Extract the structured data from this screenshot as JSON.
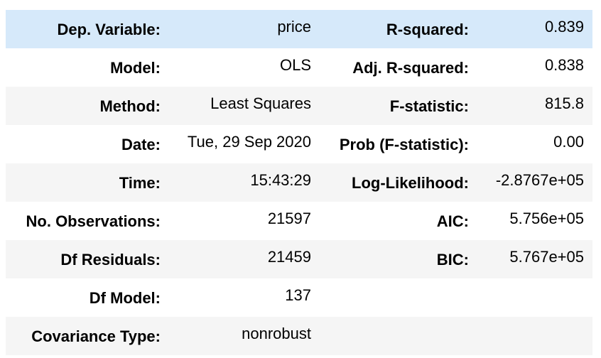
{
  "summary": {
    "rows": [
      {
        "label1": "Dep. Variable:",
        "value1": "price",
        "label2": "R-squared:",
        "value2": "0.839"
      },
      {
        "label1": "Model:",
        "value1": "OLS",
        "label2": "Adj. R-squared:",
        "value2": "0.838"
      },
      {
        "label1": "Method:",
        "value1": "Least Squares",
        "label2": "F-statistic:",
        "value2": "815.8"
      },
      {
        "label1": "Date:",
        "value1": "Tue, 29 Sep 2020",
        "label2": "Prob (F-statistic):",
        "value2": "0.00"
      },
      {
        "label1": "Time:",
        "value1": "15:43:29",
        "label2": "Log-Likelihood:",
        "value2": "-2.8767e+05"
      },
      {
        "label1": "No. Observations:",
        "value1": "21597",
        "label2": "AIC:",
        "value2": "5.756e+05"
      },
      {
        "label1": "Df Residuals:",
        "value1": "21459",
        "label2": "BIC:",
        "value2": "5.767e+05"
      },
      {
        "label1": "Df Model:",
        "value1": "137",
        "label2": "",
        "value2": ""
      },
      {
        "label1": "Covariance Type:",
        "value1": "nonrobust",
        "label2": "",
        "value2": ""
      }
    ]
  },
  "colors": {
    "highlight_row": "#d6e9fa",
    "alt_row": "#f5f5f5",
    "text": "#000000"
  }
}
